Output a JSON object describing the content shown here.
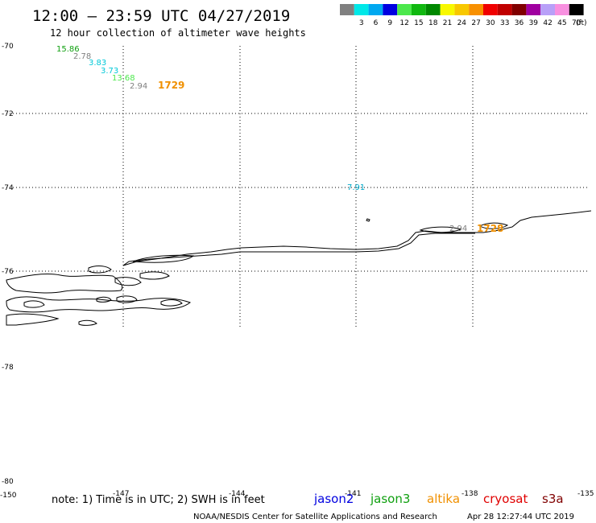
{
  "header": {
    "title": "12:00 – 23:59 UTC 04/27/2019",
    "subtitle": "12 hour collection of altimeter wave heights"
  },
  "legend": {
    "unit": "(ft)",
    "swatches": [
      {
        "color": "#808080",
        "label": ""
      },
      {
        "color": "#00e8e8",
        "label": "3"
      },
      {
        "color": "#00a8f0",
        "label": "6"
      },
      {
        "color": "#0000e0",
        "label": "9"
      },
      {
        "color": "#4ce84c",
        "label": "12"
      },
      {
        "color": "#10b810",
        "label": "15"
      },
      {
        "color": "#008800",
        "label": "18"
      },
      {
        "color": "#f8f800",
        "label": "21"
      },
      {
        "color": "#f8c800",
        "label": "24"
      },
      {
        "color": "#f89000",
        "label": "27"
      },
      {
        "color": "#f00000",
        "label": "30"
      },
      {
        "color": "#c00000",
        "label": "33"
      },
      {
        "color": "#800000",
        "label": "36"
      },
      {
        "color": "#a000a0",
        "label": "39"
      },
      {
        "color": "#b8a0f8",
        "label": "42"
      },
      {
        "color": "#f890e0",
        "label": "45"
      },
      {
        "color": "#000000",
        "label": "70"
      }
    ]
  },
  "axes": {
    "lat_labels": [
      "-70",
      "-72",
      "-74",
      "-76",
      "-78",
      "-80"
    ],
    "lon_labels": [
      "-150",
      "-147",
      "-144",
      "-141",
      "-138",
      "-135"
    ]
  },
  "observations": [
    {
      "text": "15.86",
      "color": "#10a010"
    },
    {
      "text": "2.78",
      "color": "#808080"
    },
    {
      "text": "3.83",
      "color": "#00c8d8"
    },
    {
      "text": "3.73",
      "color": "#00c8d8"
    },
    {
      "text": "13.68",
      "color": "#4ce84c"
    },
    {
      "text": "2.94",
      "color": "#808080"
    },
    {
      "text": "7.91",
      "color": "#00a8c8"
    },
    {
      "text": "2.94",
      "color": "#808080"
    }
  ],
  "time_labels": [
    {
      "text": "1729",
      "color": "#f09000"
    },
    {
      "text": "1728",
      "color": "#f09000"
    }
  ],
  "footer": {
    "note": "note: 1) Time is in UTC; 2) SWH is in feet",
    "satellites": [
      {
        "name": "jason2",
        "color": "#0000e0"
      },
      {
        "name": "jason3",
        "color": "#10a010"
      },
      {
        "name": "altika",
        "color": "#f09000"
      },
      {
        "name": "cryosat",
        "color": "#e00000"
      },
      {
        "name": "s3a",
        "color": "#800000"
      }
    ],
    "credit": "NOAA/NESDIS Center for Satellite Applications and Research",
    "timestamp": "Apr 28 12:27:44 UTC 2019"
  }
}
